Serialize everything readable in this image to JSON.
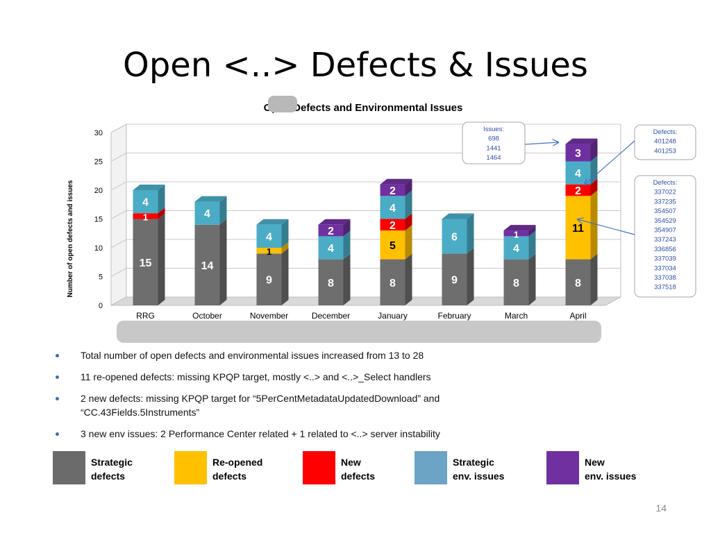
{
  "slide": {
    "title": "Open <..> Defects & Issues",
    "page_number": "14"
  },
  "chart_data": {
    "type": "bar",
    "stacked": true,
    "title": "Open        Defects and Environmental Issues",
    "ylabel": "Number of open defects and issues",
    "xlabel": "",
    "ylim": [
      0,
      30
    ],
    "yticks": [
      0,
      5,
      10,
      15,
      20,
      25,
      30
    ],
    "grid": true,
    "categories": [
      "RRG",
      "October",
      "November",
      "December",
      "January",
      "February",
      "March",
      "April"
    ],
    "series": [
      {
        "name": "Strategic defects",
        "color": "#6e6e6e",
        "values": [
          15,
          14,
          9,
          8,
          8,
          9,
          8,
          8
        ]
      },
      {
        "name": "Re-opened defects",
        "color": "#ffc000",
        "values": [
          0,
          0,
          1,
          0,
          5,
          0,
          0,
          11
        ]
      },
      {
        "name": "New defects",
        "color": "#ff0000",
        "values": [
          1,
          0,
          0,
          0,
          2,
          0,
          0,
          2
        ]
      },
      {
        "name": "Strategic env. issues",
        "color": "#4bacc6",
        "values": [
          4,
          4,
          4,
          4,
          4,
          6,
          4,
          4
        ]
      },
      {
        "name": "New env. issues",
        "color": "#7030a0",
        "values": [
          0,
          0,
          0,
          2,
          2,
          0,
          1,
          3
        ]
      }
    ],
    "annotations": [
      {
        "name": "issues-callout",
        "lines": [
          "Issues:",
          "698",
          "1441",
          "1464"
        ]
      },
      {
        "name": "new-defects-callout",
        "lines": [
          "Defects:",
          "401248",
          "401253"
        ]
      },
      {
        "name": "reopened-defects-callout",
        "lines": [
          "Defects:",
          "337022",
          "337235",
          "354507",
          "354529",
          "354907",
          "337243",
          "336856",
          "337039",
          "337034",
          "337038",
          "337518"
        ]
      }
    ]
  },
  "bullets": [
    "Total number of open defects and environmental issues increased from 13 to 28",
    "11 re-opened defects: missing KPQP target, mostly <..> and <..>_Select handlers",
    "2 new defects: missing KPQP target for “5PerCentMetadataUpdatedDownload” and “CC.43Fields.5Instruments”",
    "3 new env issues: 2 Performance Center related + 1 related to <..> server instability"
  ],
  "legend": [
    {
      "color": "#6b6b6b",
      "line1": "Strategic",
      "line2": "defects"
    },
    {
      "color": "#ffc000",
      "line1": "Re-opened",
      "line2": "defects"
    },
    {
      "color": "#ff0000",
      "line1": "New",
      "line2": "defects"
    },
    {
      "color": "#6ba4c4",
      "line1": "Strategic",
      "line2": "env. issues"
    },
    {
      "color": "#7030a0",
      "line1": "New",
      "line2": "env. issues"
    }
  ]
}
